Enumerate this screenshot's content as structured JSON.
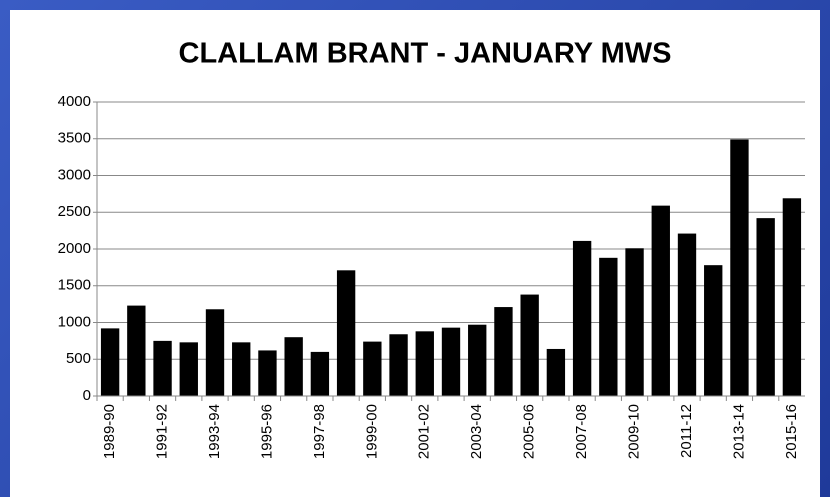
{
  "chart_data": {
    "type": "bar",
    "title": "CLALLAM BRANT - JANUARY MWS",
    "categories": [
      "1989-90",
      null,
      "1991-92",
      null,
      "1993-94",
      null,
      "1995-96",
      null,
      "1997-98",
      null,
      "1999-00",
      null,
      "2001-02",
      null,
      "2003-04",
      null,
      "2005-06",
      null,
      "2007-08",
      null,
      "2009-10",
      null,
      "2011-12",
      null,
      "2013-14",
      null,
      "2015-16"
    ],
    "values": [
      920,
      1230,
      750,
      730,
      1180,
      730,
      620,
      800,
      600,
      1710,
      740,
      840,
      880,
      930,
      970,
      1210,
      1380,
      640,
      2110,
      1880,
      2010,
      2590,
      2210,
      1780,
      3490,
      2420,
      2690
    ],
    "color": "#000000",
    "ylim": [
      0,
      4000
    ],
    "yticks": [
      0,
      500,
      1000,
      1500,
      2000,
      2500,
      3000,
      3500,
      4000
    ],
    "grid": true
  }
}
